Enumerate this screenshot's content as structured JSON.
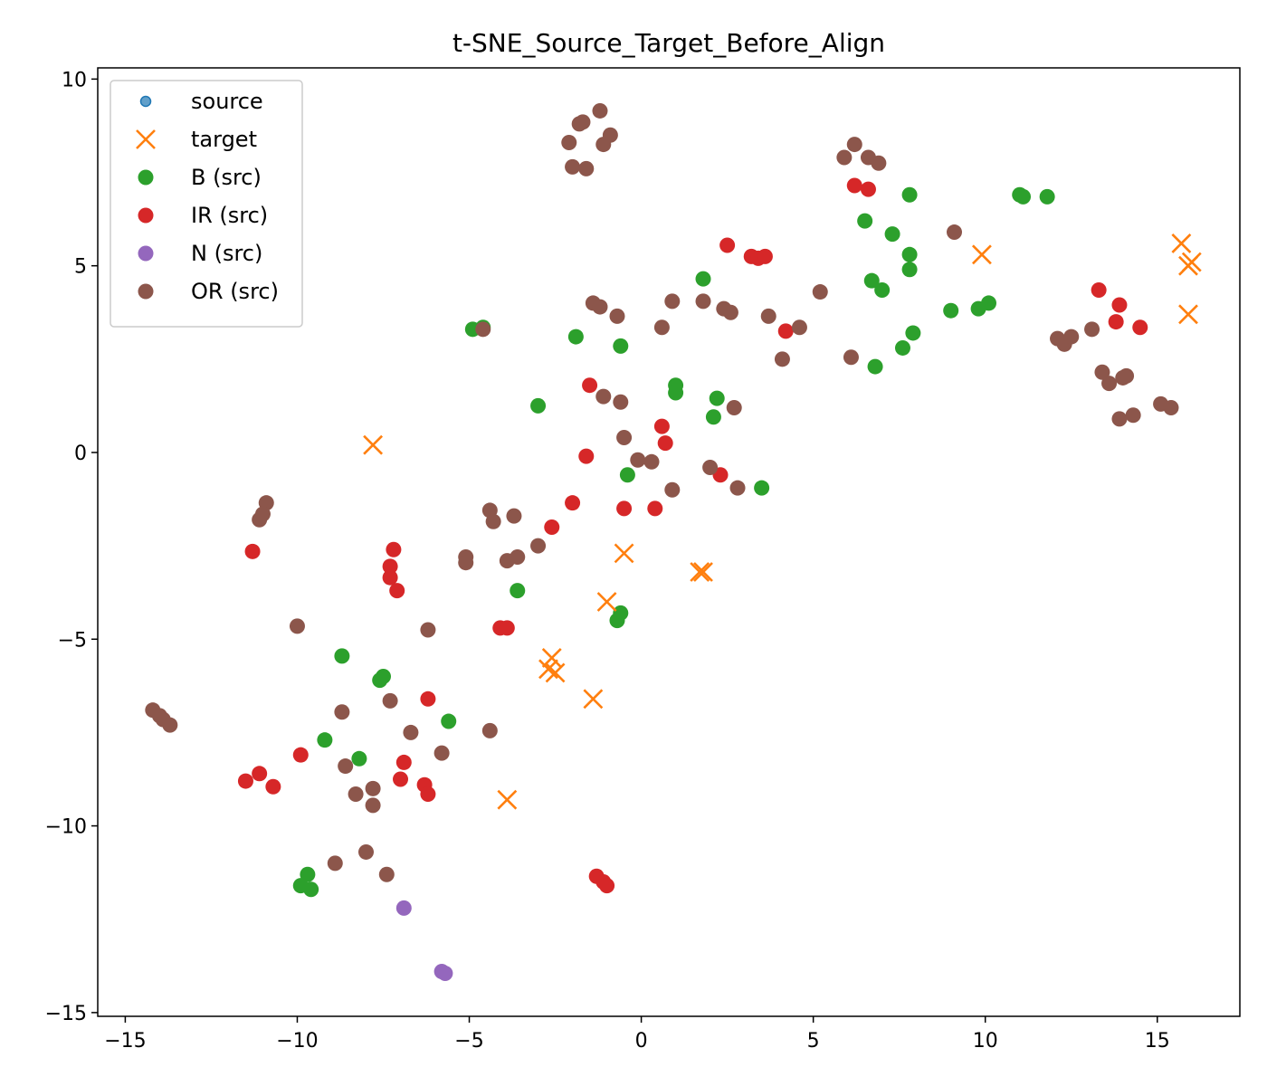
{
  "chart_data": {
    "type": "scatter",
    "title": "t-SNE_Source_Target_Before_Align",
    "xlabel": "",
    "ylabel": "",
    "xlim": [
      -15.8,
      17.4
    ],
    "ylim": [
      -15.1,
      10.3
    ],
    "xticks": [
      -15,
      -10,
      -5,
      0,
      5,
      10,
      15
    ],
    "yticks": [
      10,
      5,
      0,
      -5,
      -10,
      -15
    ],
    "grid": false,
    "legend_position": "top-left",
    "legend": [
      {
        "label": "source",
        "marker": "circle-small",
        "color": "#1f77b4"
      },
      {
        "label": "target",
        "marker": "x",
        "color": "#ff7f0e"
      },
      {
        "label": "B (src)",
        "marker": "circle",
        "color": "#2ca02c"
      },
      {
        "label": "IR (src)",
        "marker": "circle",
        "color": "#d62728"
      },
      {
        "label": "N (src)",
        "marker": "circle",
        "color": "#9467bd"
      },
      {
        "label": "OR (src)",
        "marker": "circle",
        "color": "#8c564b"
      }
    ],
    "series": [
      {
        "name": "target",
        "marker": "x",
        "color": "#ff7f0e",
        "points": [
          [
            -7.8,
            0.2
          ],
          [
            -0.5,
            -2.7
          ],
          [
            1.7,
            -3.2
          ],
          [
            1.8,
            -3.2
          ],
          [
            -1.0,
            -4.0
          ],
          [
            -2.6,
            -5.5
          ],
          [
            -2.7,
            -5.8
          ],
          [
            -2.5,
            -5.9
          ],
          [
            -1.4,
            -6.6
          ],
          [
            -3.9,
            -9.3
          ],
          [
            9.9,
            5.3
          ],
          [
            15.7,
            5.6
          ],
          [
            15.9,
            5.0
          ],
          [
            16.0,
            5.1
          ],
          [
            15.9,
            3.7
          ]
        ]
      },
      {
        "name": "B (src)",
        "marker": "circle",
        "color": "#2ca02c",
        "points": [
          [
            -4.9,
            3.3
          ],
          [
            -4.6,
            3.35
          ],
          [
            -1.9,
            3.1
          ],
          [
            -3.0,
            1.25
          ],
          [
            -0.6,
            2.85
          ],
          [
            1.0,
            1.8
          ],
          [
            1.0,
            1.6
          ],
          [
            2.2,
            1.45
          ],
          [
            2.1,
            0.95
          ],
          [
            -0.4,
            -0.6
          ],
          [
            3.5,
            -0.95
          ],
          [
            1.8,
            4.65
          ],
          [
            6.5,
            6.2
          ],
          [
            7.3,
            5.85
          ],
          [
            6.7,
            4.6
          ],
          [
            7.0,
            4.35
          ],
          [
            7.8,
            5.3
          ],
          [
            7.8,
            4.9
          ],
          [
            7.8,
            6.9
          ],
          [
            7.9,
            3.2
          ],
          [
            7.6,
            2.8
          ],
          [
            6.8,
            2.3
          ],
          [
            9.0,
            3.8
          ],
          [
            9.8,
            3.85
          ],
          [
            10.1,
            4.0
          ],
          [
            11.0,
            6.9
          ],
          [
            11.1,
            6.85
          ],
          [
            11.8,
            6.85
          ],
          [
            -3.6,
            -3.7
          ],
          [
            -0.6,
            -4.3
          ],
          [
            -0.7,
            -4.5
          ],
          [
            -8.7,
            -5.45
          ],
          [
            -7.5,
            -6.0
          ],
          [
            -7.6,
            -6.1
          ],
          [
            -5.6,
            -7.2
          ],
          [
            -9.2,
            -7.7
          ],
          [
            -8.2,
            -8.2
          ],
          [
            -9.9,
            -11.6
          ],
          [
            -9.7,
            -11.3
          ],
          [
            -9.6,
            -11.7
          ]
        ]
      },
      {
        "name": "IR (src)",
        "marker": "circle",
        "color": "#d62728",
        "points": [
          [
            2.5,
            5.55
          ],
          [
            3.2,
            5.25
          ],
          [
            3.4,
            5.2
          ],
          [
            3.6,
            5.25
          ],
          [
            4.2,
            3.25
          ],
          [
            6.2,
            7.15
          ],
          [
            6.6,
            7.05
          ],
          [
            -1.5,
            1.8
          ],
          [
            0.6,
            0.7
          ],
          [
            0.7,
            0.25
          ],
          [
            -1.6,
            -0.1
          ],
          [
            2.3,
            -0.6
          ],
          [
            -2.0,
            -1.35
          ],
          [
            -0.5,
            -1.5
          ],
          [
            0.4,
            -1.5
          ],
          [
            -2.6,
            -2.0
          ],
          [
            -11.3,
            -2.65
          ],
          [
            -7.2,
            -2.6
          ],
          [
            -7.3,
            -3.05
          ],
          [
            -7.3,
            -3.35
          ],
          [
            -7.1,
            -3.7
          ],
          [
            -4.1,
            -4.7
          ],
          [
            -3.9,
            -4.7
          ],
          [
            -6.2,
            -6.6
          ],
          [
            -9.9,
            -8.1
          ],
          [
            -6.9,
            -8.3
          ],
          [
            -7.0,
            -8.75
          ],
          [
            -11.5,
            -8.8
          ],
          [
            -11.1,
            -8.6
          ],
          [
            -10.7,
            -8.95
          ],
          [
            -6.3,
            -8.9
          ],
          [
            -6.2,
            -9.15
          ],
          [
            -1.3,
            -11.35
          ],
          [
            -1.1,
            -11.5
          ],
          [
            -1.0,
            -11.6
          ],
          [
            13.3,
            4.35
          ],
          [
            13.9,
            3.95
          ],
          [
            13.8,
            3.5
          ],
          [
            14.5,
            3.35
          ]
        ]
      },
      {
        "name": "N (src)",
        "marker": "circle",
        "color": "#9467bd",
        "points": [
          [
            -6.9,
            -12.2
          ],
          [
            -5.8,
            -13.9
          ],
          [
            -5.7,
            -13.95
          ]
        ]
      },
      {
        "name": "OR (src)",
        "marker": "circle",
        "color": "#8c564b",
        "points": [
          [
            -1.2,
            9.15
          ],
          [
            -1.8,
            8.8
          ],
          [
            -1.7,
            8.85
          ],
          [
            -0.9,
            8.5
          ],
          [
            -2.1,
            8.3
          ],
          [
            -1.1,
            8.25
          ],
          [
            -2.0,
            7.65
          ],
          [
            -1.6,
            7.6
          ],
          [
            6.2,
            8.25
          ],
          [
            5.9,
            7.9
          ],
          [
            6.6,
            7.9
          ],
          [
            6.9,
            7.75
          ],
          [
            9.1,
            5.9
          ],
          [
            -1.4,
            4.0
          ],
          [
            -1.2,
            3.9
          ],
          [
            -0.7,
            3.65
          ],
          [
            0.9,
            4.05
          ],
          [
            1.8,
            4.05
          ],
          [
            2.4,
            3.85
          ],
          [
            2.6,
            3.75
          ],
          [
            3.7,
            3.65
          ],
          [
            4.6,
            3.35
          ],
          [
            5.2,
            4.3
          ],
          [
            0.6,
            3.35
          ],
          [
            -4.6,
            3.3
          ],
          [
            4.1,
            2.5
          ],
          [
            6.1,
            2.55
          ],
          [
            -1.1,
            1.5
          ],
          [
            -0.6,
            1.35
          ],
          [
            2.7,
            1.2
          ],
          [
            -0.5,
            0.4
          ],
          [
            -0.1,
            -0.2
          ],
          [
            0.3,
            -0.25
          ],
          [
            0.9,
            -1.0
          ],
          [
            2.0,
            -0.4
          ],
          [
            2.8,
            -0.95
          ],
          [
            -4.4,
            -1.55
          ],
          [
            -4.3,
            -1.85
          ],
          [
            -3.7,
            -1.7
          ],
          [
            -3.0,
            -2.5
          ],
          [
            -3.6,
            -2.8
          ],
          [
            -3.9,
            -2.9
          ],
          [
            -5.1,
            -2.8
          ],
          [
            -5.1,
            -2.95
          ],
          [
            -10.9,
            -1.35
          ],
          [
            -11.0,
            -1.65
          ],
          [
            -11.1,
            -1.8
          ],
          [
            -10.0,
            -4.65
          ],
          [
            -6.2,
            -4.75
          ],
          [
            -7.3,
            -6.65
          ],
          [
            -8.7,
            -6.95
          ],
          [
            -6.7,
            -7.5
          ],
          [
            -4.4,
            -7.45
          ],
          [
            -5.8,
            -8.05
          ],
          [
            -8.6,
            -8.4
          ],
          [
            -8.3,
            -9.15
          ],
          [
            -7.8,
            -9.0
          ],
          [
            -7.8,
            -9.45
          ],
          [
            -14.2,
            -6.9
          ],
          [
            -14.0,
            -7.05
          ],
          [
            -13.9,
            -7.15
          ],
          [
            -13.7,
            -7.3
          ],
          [
            -8.0,
            -10.7
          ],
          [
            -8.9,
            -11.0
          ],
          [
            -7.4,
            -11.3
          ],
          [
            12.1,
            3.05
          ],
          [
            12.3,
            2.9
          ],
          [
            12.5,
            3.1
          ],
          [
            13.1,
            3.3
          ],
          [
            13.4,
            2.15
          ],
          [
            13.6,
            1.85
          ],
          [
            14.0,
            2.0
          ],
          [
            14.1,
            2.05
          ],
          [
            13.9,
            0.9
          ],
          [
            14.3,
            1.0
          ],
          [
            15.1,
            1.3
          ],
          [
            15.4,
            1.2
          ]
        ]
      }
    ]
  }
}
